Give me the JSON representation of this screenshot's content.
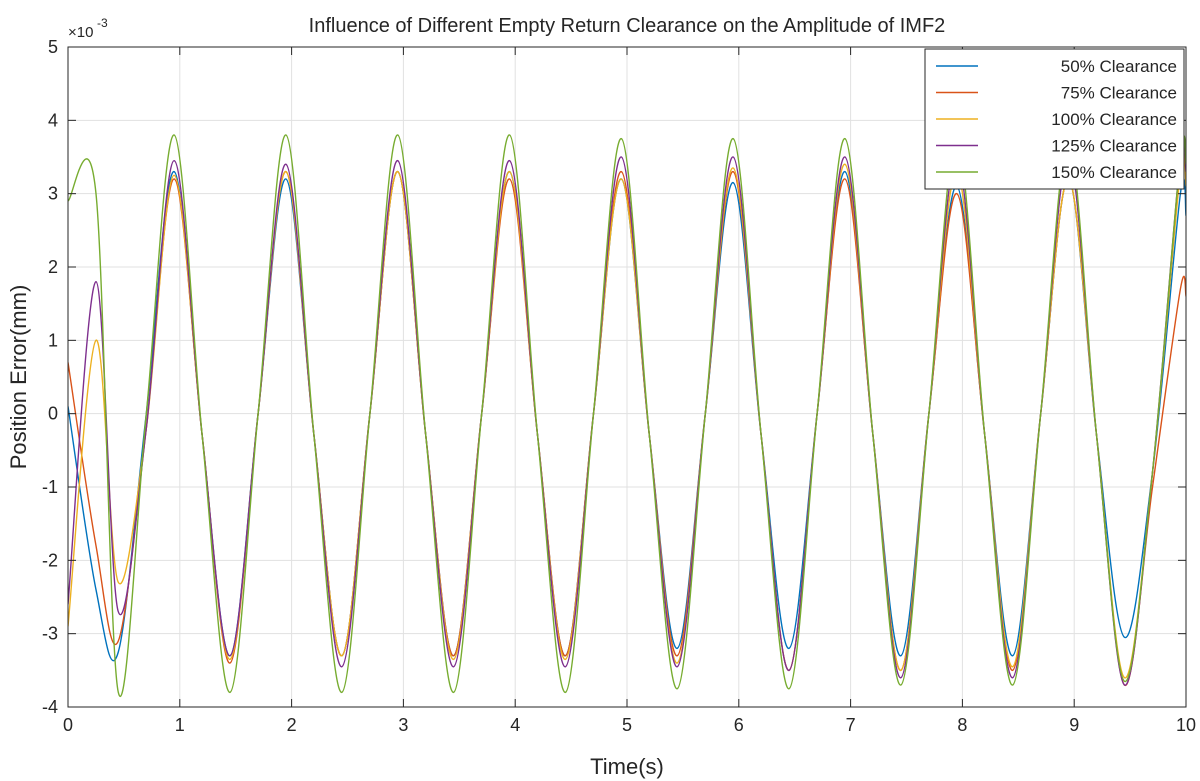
{
  "chart_data": {
    "type": "line",
    "title": "Influence of Different Empty Return Clearance on the Amplitude of IMF2",
    "xlabel": "Time(s)",
    "ylabel": "Position Error(mm)",
    "exponent_label": "×10",
    "exponent_power": "-3",
    "xlim": [
      0,
      10
    ],
    "ylim": [
      -4,
      5
    ],
    "x_ticks": [
      "0",
      "1",
      "2",
      "3",
      "4",
      "5",
      "6",
      "7",
      "8",
      "9",
      "10"
    ],
    "y_ticks": [
      "-4",
      "-3",
      "-2",
      "-1",
      "0",
      "1",
      "2",
      "3",
      "4",
      "5"
    ],
    "grid": true,
    "legend_position": "top-right",
    "x": [
      0,
      0.25,
      0.45,
      0.7,
      0.95,
      1.2,
      1.45,
      1.7,
      1.95,
      2.2,
      2.45,
      2.7,
      2.95,
      3.2,
      3.45,
      3.7,
      3.95,
      4.2,
      4.45,
      4.7,
      4.95,
      5.2,
      5.45,
      5.7,
      5.95,
      6.2,
      6.45,
      6.7,
      6.95,
      7.2,
      7.45,
      7.7,
      7.95,
      8.2,
      8.45,
      8.7,
      8.95,
      9.2,
      9.45,
      9.7,
      9.95,
      10
    ],
    "series": [
      {
        "name": "50% Clearance",
        "color": "#0072BD",
        "values": [
          0.1,
          -2.4,
          -3.25,
          0,
          3.3,
          -0.3,
          -3.3,
          0,
          3.2,
          -0.3,
          -3.3,
          0,
          3.3,
          -0.3,
          -3.3,
          0,
          3.3,
          -0.3,
          -3.3,
          0,
          3.2,
          -0.3,
          -3.2,
          0,
          3.15,
          -0.3,
          -3.2,
          0,
          3.3,
          -0.3,
          -3.3,
          0,
          3.1,
          -0.3,
          -3.3,
          0,
          3.2,
          -0.3,
          -3.05,
          -0.8,
          3.0,
          2.7
        ]
      },
      {
        "name": "75% Clearance",
        "color": "#D95319",
        "values": [
          0.7,
          -1.8,
          -3.1,
          -0.2,
          3.2,
          -0.3,
          -3.4,
          0,
          3.3,
          -0.3,
          -3.3,
          0,
          3.3,
          -0.3,
          -3.3,
          0,
          3.2,
          -0.3,
          -3.3,
          0,
          3.3,
          -0.3,
          -3.3,
          0,
          3.3,
          -0.3,
          -3.5,
          0,
          3.2,
          -0.3,
          -3.5,
          0,
          3.0,
          -0.3,
          -3.5,
          0,
          3.2,
          -0.3,
          -3.7,
          -1.0,
          1.7,
          1.6
        ]
      },
      {
        "name": "100% Clearance",
        "color": "#EDB120",
        "values": [
          -2.9,
          1.0,
          -2.3,
          -0.2,
          3.25,
          -0.3,
          -3.35,
          0,
          3.3,
          -0.3,
          -3.3,
          0,
          3.3,
          -0.3,
          -3.35,
          0,
          3.3,
          -0.3,
          -3.35,
          0,
          3.2,
          -0.3,
          -3.4,
          0,
          3.35,
          -0.3,
          -3.5,
          0,
          3.4,
          -0.3,
          -3.5,
          0,
          3.3,
          -0.3,
          -3.45,
          0,
          3.2,
          -0.3,
          -3.6,
          -0.8,
          3.3,
          3.1
        ]
      },
      {
        "name": "125% Clearance",
        "color": "#7E2F8E",
        "values": [
          -2.6,
          1.8,
          -2.7,
          -0.2,
          3.45,
          -0.3,
          -3.3,
          0,
          3.4,
          -0.3,
          -3.45,
          0,
          3.45,
          -0.3,
          -3.45,
          0,
          3.45,
          -0.3,
          -3.45,
          0,
          3.5,
          -0.3,
          -3.45,
          0,
          3.5,
          -0.3,
          -3.5,
          0,
          3.5,
          -0.3,
          -3.6,
          0,
          3.5,
          -0.3,
          -3.6,
          0,
          3.5,
          -0.3,
          -3.7,
          -0.8,
          3.5,
          3.3
        ]
      },
      {
        "name": "150% Clearance",
        "color": "#77AC30",
        "values": [
          2.9,
          3.0,
          -3.8,
          0,
          3.8,
          -0.3,
          -3.8,
          0,
          3.8,
          -0.3,
          -3.8,
          0,
          3.8,
          -0.3,
          -3.8,
          0,
          3.8,
          -0.3,
          -3.8,
          0,
          3.75,
          -0.3,
          -3.75,
          0,
          3.75,
          -0.3,
          -3.75,
          0,
          3.75,
          -0.3,
          -3.7,
          0,
          3.75,
          -0.3,
          -3.7,
          0,
          3.7,
          -0.3,
          -3.65,
          -0.8,
          3.5,
          3.4
        ]
      }
    ]
  }
}
